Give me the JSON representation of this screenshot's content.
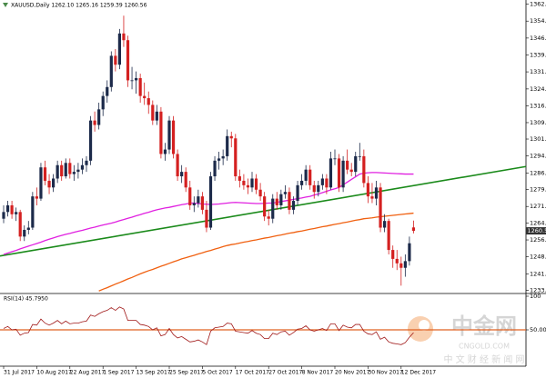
{
  "chart_data": {
    "type": "candlestick",
    "title": "XAUUSD,Daily 1262.10 1265.16 1259.39 1260.56",
    "bull_color": "#1c2a4a",
    "bear_color": "#d42020",
    "ylim": [
      1232.9,
      1364
    ],
    "yticks": [
      {
        "value": 1362.1,
        "label": "1362.10"
      },
      1354.55,
      1346.95,
      1339.35,
      {
        "value": 1331.8,
        "label": "1331.80"
      },
      1324.15,
      {
        "value": 1316.6,
        "label": "1316.60"
      },
      1309.05,
      {
        "value": 1301.7,
        "label": "1301.70"
      },
      {
        "value": 1294.1,
        "label": "1294.10"
      },
      {
        "value": 1286.5,
        "label": "1286.50"
      },
      {
        "value": 1279.1,
        "label": "1279.10"
      },
      {
        "value": 1271.5,
        "label": "1271.50"
      },
      {
        "value": 1264.1,
        "label": "1264.10"
      },
      {
        "value": 1256.5,
        "label": "1256.50"
      },
      {
        "value": 1248.9,
        "label": "1248.90"
      },
      {
        "value": 1241.3,
        "label": "1241.30"
      },
      {
        "value": 1233.9,
        "label": "1233.90"
      }
    ],
    "categories": [
      "31 Jul 2017",
      null,
      null,
      null,
      null,
      null,
      null,
      null,
      "10 Aug 2017",
      null,
      null,
      null,
      null,
      null,
      null,
      null,
      "22 Aug 2017",
      null,
      null,
      null,
      null,
      null,
      null,
      null,
      "1 Sep 2017",
      null,
      null,
      null,
      null,
      null,
      null,
      null,
      "13 Sep 2017",
      null,
      null,
      null,
      null,
      null,
      null,
      null,
      "25 Sep 2017",
      null,
      null,
      null,
      null,
      null,
      null,
      null,
      "5 Oct 2017",
      null,
      null,
      null,
      null,
      null,
      null,
      null,
      "17 Oct 2017",
      null,
      null,
      null,
      null,
      null,
      null,
      null,
      "27 Oct 2017",
      null,
      null,
      null,
      null,
      null,
      null,
      null,
      "8 Nov 2017",
      null,
      null,
      null,
      null,
      null,
      null,
      null,
      "20 Nov 2017",
      null,
      null,
      null,
      null,
      null,
      null,
      null,
      "30 Nov 2017",
      null,
      null,
      null,
      null,
      null,
      null,
      null,
      "12 Dec 2017",
      null,
      null,
      null
    ],
    "candles": [
      [
        1266,
        1272,
        1264,
        1269
      ],
      [
        1269,
        1274,
        1267,
        1272
      ],
      [
        1272,
        1274,
        1266,
        1268
      ],
      [
        1268,
        1271,
        1265,
        1269
      ],
      [
        1269,
        1270,
        1256,
        1258
      ],
      [
        1258,
        1263,
        1256,
        1261
      ],
      [
        1261,
        1265,
        1259,
        1262
      ],
      [
        1262,
        1278,
        1261,
        1276
      ],
      [
        1276,
        1280,
        1272,
        1275
      ],
      [
        1275,
        1291,
        1274,
        1289
      ],
      [
        1289,
        1292,
        1281,
        1283
      ],
      [
        1283,
        1286,
        1277,
        1280
      ],
      [
        1280,
        1286,
        1278,
        1284
      ],
      [
        1284,
        1292,
        1282,
        1290
      ],
      [
        1290,
        1292,
        1283,
        1285
      ],
      [
        1285,
        1293,
        1284,
        1291
      ],
      [
        1291,
        1293,
        1284,
        1286
      ],
      [
        1286,
        1290,
        1283,
        1287
      ],
      [
        1287,
        1291,
        1284,
        1288
      ],
      [
        1288,
        1293,
        1286,
        1290
      ],
      [
        1290,
        1294,
        1287,
        1292
      ],
      [
        1292,
        1312,
        1290,
        1310
      ],
      [
        1310,
        1314,
        1305,
        1308
      ],
      [
        1308,
        1318,
        1306,
        1315
      ],
      [
        1315,
        1323,
        1312,
        1321
      ],
      [
        1321,
        1328,
        1318,
        1325
      ],
      [
        1325,
        1341,
        1323,
        1339
      ],
      [
        1339,
        1342,
        1332,
        1335
      ],
      [
        1335,
        1351,
        1333,
        1349
      ],
      [
        1349,
        1357,
        1343,
        1346
      ],
      [
        1346,
        1348,
        1325,
        1328
      ],
      [
        1328,
        1334,
        1324,
        1328
      ],
      [
        1328,
        1332,
        1322,
        1329
      ],
      [
        1329,
        1331,
        1318,
        1321
      ],
      [
        1321,
        1327,
        1317,
        1320
      ],
      [
        1320,
        1323,
        1313,
        1317
      ],
      [
        1317,
        1319,
        1308,
        1310
      ],
      [
        1310,
        1317,
        1308,
        1314
      ],
      [
        1314,
        1316,
        1293,
        1295
      ],
      [
        1295,
        1300,
        1292,
        1297
      ],
      [
        1297,
        1312,
        1295,
        1310
      ],
      [
        1310,
        1312,
        1293,
        1295
      ],
      [
        1295,
        1297,
        1283,
        1285
      ],
      [
        1285,
        1290,
        1282,
        1287
      ],
      [
        1287,
        1289,
        1278,
        1280
      ],
      [
        1280,
        1283,
        1270,
        1272
      ],
      [
        1272,
        1276,
        1269,
        1273
      ],
      [
        1273,
        1279,
        1271,
        1276
      ],
      [
        1276,
        1278,
        1268,
        1270
      ],
      [
        1270,
        1274,
        1260,
        1262
      ],
      [
        1262,
        1287,
        1261,
        1285
      ],
      [
        1285,
        1294,
        1283,
        1292
      ],
      [
        1292,
        1296,
        1288,
        1293
      ],
      [
        1293,
        1297,
        1290,
        1294
      ],
      [
        1294,
        1306,
        1292,
        1303
      ],
      [
        1303,
        1305,
        1298,
        1302
      ],
      [
        1302,
        1304,
        1283,
        1285
      ],
      [
        1285,
        1288,
        1280,
        1283
      ],
      [
        1283,
        1286,
        1279,
        1281
      ],
      [
        1281,
        1284,
        1277,
        1280
      ],
      [
        1280,
        1287,
        1278,
        1284
      ],
      [
        1284,
        1286,
        1277,
        1279
      ],
      [
        1279,
        1282,
        1274,
        1276
      ],
      [
        1276,
        1278,
        1265,
        1267
      ],
      [
        1267,
        1270,
        1263,
        1266
      ],
      [
        1266,
        1277,
        1264,
        1275
      ],
      [
        1275,
        1278,
        1270,
        1272
      ],
      [
        1272,
        1279,
        1270,
        1277
      ],
      [
        1277,
        1281,
        1275,
        1278
      ],
      [
        1278,
        1280,
        1268,
        1270
      ],
      [
        1270,
        1276,
        1268,
        1274
      ],
      [
        1274,
        1283,
        1272,
        1281
      ],
      [
        1281,
        1286,
        1279,
        1283
      ],
      [
        1283,
        1290,
        1281,
        1288
      ],
      [
        1288,
        1290,
        1279,
        1281
      ],
      [
        1281,
        1283,
        1275,
        1278
      ],
      [
        1278,
        1283,
        1276,
        1281
      ],
      [
        1281,
        1286,
        1279,
        1284
      ],
      [
        1284,
        1286,
        1277,
        1280
      ],
      [
        1280,
        1296,
        1279,
        1293
      ],
      [
        1293,
        1297,
        1290,
        1293
      ],
      [
        1293,
        1295,
        1278,
        1280
      ],
      [
        1280,
        1294,
        1278,
        1292
      ],
      [
        1292,
        1297,
        1286,
        1288
      ],
      [
        1288,
        1291,
        1285,
        1287
      ],
      [
        1287,
        1296,
        1285,
        1294
      ],
      [
        1294,
        1300,
        1292,
        1294
      ],
      [
        1294,
        1297,
        1280,
        1282
      ],
      [
        1282,
        1285,
        1273,
        1276
      ],
      [
        1276,
        1282,
        1273,
        1275
      ],
      [
        1275,
        1283,
        1272,
        1280
      ],
      [
        1280,
        1282,
        1260,
        1262
      ],
      [
        1262,
        1268,
        1260,
        1265
      ],
      [
        1265,
        1266,
        1250,
        1252
      ],
      [
        1252,
        1254,
        1244,
        1248
      ],
      [
        1248,
        1252,
        1243,
        1246
      ],
      [
        1246,
        1249,
        1236,
        1244
      ],
      [
        1244,
        1250,
        1240,
        1247
      ],
      [
        1247,
        1258,
        1245,
        1255
      ],
      [
        1262.1,
        1265.16,
        1259.39,
        1260.56
      ]
    ],
    "moving_averages": [
      {
        "color": "#e020e0",
        "values": [
          1250,
          1250.6,
          1251.2,
          1251.8,
          1252.5,
          1253.1,
          1253.7,
          1254.3,
          1254.9,
          1255.5,
          1256.2,
          1256.8,
          1257.4,
          1258,
          1258.5,
          1259,
          1259.4,
          1259.9,
          1260.4,
          1260.8,
          1261.3,
          1261.8,
          1262.2,
          1262.7,
          1263.2,
          1263.6,
          1264,
          1264.5,
          1265.1,
          1265.6,
          1266.2,
          1266.7,
          1267.3,
          1267.8,
          1268.4,
          1268.9,
          1269.5,
          1270,
          1270.4,
          1270.8,
          1271.1,
          1271.5,
          1271.9,
          1272.3,
          1272.6,
          1273,
          1273,
          1272.8,
          1272.6,
          1272.5,
          1272.4,
          1272.5,
          1272.6,
          1272.8,
          1273,
          1273.2,
          1273.3,
          1273.2,
          1273.1,
          1273,
          1272.9,
          1272.8,
          1272.8,
          1272.9,
          1273,
          1273,
          1273.3,
          1273.7,
          1274,
          1274.3,
          1274.7,
          1275,
          1275.3,
          1275.7,
          1276,
          1276.6,
          1277.1,
          1277.7,
          1278.3,
          1278.9,
          1279.4,
          1280,
          1281.2,
          1282.4,
          1283.6,
          1284.8,
          1286,
          1286.4,
          1286.6,
          1286.7,
          1286.7,
          1286.6,
          1286.5,
          1286.4,
          1286.3,
          1286.2,
          1286.1,
          1286,
          1286,
          1286
        ]
      },
      {
        "color": "#f06010",
        "values": [
          null,
          null,
          null,
          null,
          null,
          null,
          null,
          null,
          null,
          null,
          null,
          null,
          null,
          null,
          null,
          null,
          null,
          null,
          null,
          null,
          null,
          null,
          null,
          1233.6,
          1234.4,
          1235.1,
          1235.9,
          1236.7,
          1237.4,
          1238.2,
          1239,
          1239.7,
          1240.5,
          1241.3,
          1242,
          1242.7,
          1243.3,
          1244,
          1244.7,
          1245.3,
          1246,
          1246.7,
          1247.3,
          1248,
          1248.5,
          1249.1,
          1249.6,
          1250.2,
          1250.7,
          1251.3,
          1251.8,
          1252.4,
          1252.9,
          1253.5,
          1254,
          1254.4,
          1254.7,
          1255.1,
          1255.5,
          1255.8,
          1256.2,
          1256.5,
          1256.9,
          1257.3,
          1257.6,
          1258,
          1258.4,
          1258.7,
          1259.1,
          1259.5,
          1259.8,
          1260.2,
          1260.5,
          1260.9,
          1261.3,
          1261.6,
          1262,
          1262.4,
          1262.7,
          1263.1,
          1263.5,
          1263.8,
          1264.2,
          1264.5,
          1264.9,
          1265.3,
          1265.6,
          1266,
          1266.2,
          1266.4,
          1266.7,
          1266.9,
          1267.1,
          1267.3,
          1267.5,
          1267.7,
          1267.9,
          1268.1,
          1268.3,
          1268.5
        ]
      }
    ],
    "trendline": {
      "color": "#1a8a1a",
      "values": [
        1249.3,
        1289.4
      ]
    },
    "rsi": {
      "label": "RSI(14) 45.7950",
      "color": "#a01818",
      "level_color": "#e06020",
      "ylim": [
        0,
        100
      ],
      "yticks": [
        100,
        {
          "value": 50,
          "label": "50.0000"
        }
      ],
      "values": [
        52,
        55,
        50,
        51,
        42,
        45,
        46,
        58,
        57,
        66,
        60,
        57,
        60,
        64,
        59,
        63,
        59,
        60,
        60,
        62,
        63,
        72,
        70,
        74,
        77,
        79,
        83,
        79,
        84,
        81,
        64,
        64,
        64,
        58,
        57,
        55,
        50,
        53,
        41,
        43,
        52,
        43,
        38,
        40,
        36,
        32,
        33,
        35,
        32,
        28,
        48,
        53,
        54,
        55,
        60,
        59,
        48,
        47,
        46,
        45,
        49,
        45,
        43,
        37,
        37,
        45,
        43,
        47,
        48,
        42,
        46,
        51,
        52,
        56,
        50,
        48,
        50,
        52,
        49,
        59,
        59,
        49,
        57,
        54,
        53,
        58,
        58,
        48,
        44,
        43,
        47,
        36,
        39,
        32,
        30,
        29,
        28,
        31,
        39,
        45.795
      ]
    },
    "watermark": {
      "brand": "中金网",
      "site": "CNGOLD.COM",
      "slogan": "中 文 财 经 新 闻 网"
    }
  }
}
